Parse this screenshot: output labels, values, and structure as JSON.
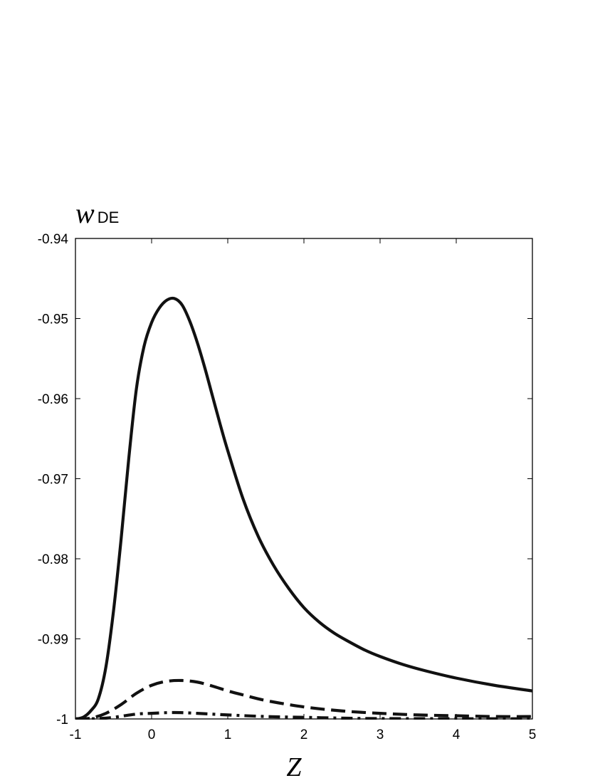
{
  "chart_data": {
    "type": "line",
    "xlabel": "Z",
    "ylabel_main": "w",
    "ylabel_sub": "DE",
    "xlim": [
      -1,
      5
    ],
    "ylim": [
      -1,
      -0.94
    ],
    "xticks": [
      -1,
      0,
      1,
      2,
      3,
      4,
      5
    ],
    "yticks": [
      -0.94,
      -0.95,
      -0.96,
      -0.97,
      -0.98,
      -0.99,
      -1
    ],
    "xtick_labels": [
      "-1",
      "0",
      "1",
      "2",
      "3",
      "4",
      "5"
    ],
    "ytick_labels": [
      "-0.94",
      "-0.95",
      "-0.96",
      "-0.97",
      "-0.98",
      "-0.99",
      "-1"
    ],
    "grid": false,
    "series": [
      {
        "style": "solid",
        "x": [
          -1,
          -0.9,
          -0.8,
          -0.7,
          -0.6,
          -0.5,
          -0.4,
          -0.3,
          -0.2,
          -0.1,
          0,
          0.1,
          0.2,
          0.3,
          0.4,
          0.5,
          0.6,
          0.7,
          0.8,
          0.9,
          1,
          1.2,
          1.4,
          1.6,
          1.8,
          2,
          2.2,
          2.4,
          2.6,
          2.8,
          3,
          3.3,
          3.6,
          4,
          4.5,
          5
        ],
        "y": [
          -1,
          -0.9998,
          -0.999,
          -0.9975,
          -0.9935,
          -0.9865,
          -0.9775,
          -0.9675,
          -0.9588,
          -0.9535,
          -0.9505,
          -0.9487,
          -0.9477,
          -0.9475,
          -0.9483,
          -0.9503,
          -0.953,
          -0.9562,
          -0.9597,
          -0.9632,
          -0.9665,
          -0.9725,
          -0.9772,
          -0.9808,
          -0.9837,
          -0.9861,
          -0.9879,
          -0.9893,
          -0.9904,
          -0.9914,
          -0.9922,
          -0.9932,
          -0.994,
          -0.9949,
          -0.9958,
          -0.9965
        ]
      },
      {
        "style": "dashed",
        "x": [
          -1,
          -0.8,
          -0.6,
          -0.4,
          -0.2,
          0,
          0.2,
          0.4,
          0.6,
          0.8,
          1,
          1.2,
          1.5,
          2,
          2.5,
          3,
          3.5,
          4,
          4.5,
          5
        ],
        "y": [
          -1,
          -0.9999,
          -0.9993,
          -0.9982,
          -0.9968,
          -0.9958,
          -0.9953,
          -0.9952,
          -0.9954,
          -0.9959,
          -0.9965,
          -0.997,
          -0.9977,
          -0.9985,
          -0.999,
          -0.9993,
          -0.9995,
          -0.9996,
          -0.9997,
          -0.9997
        ]
      },
      {
        "style": "dashdot",
        "x": [
          -1,
          -0.6,
          -0.2,
          0,
          0.3,
          0.6,
          1,
          1.5,
          2,
          2.5,
          3,
          4,
          5
        ],
        "y": [
          -1,
          -0.9999,
          -0.9994,
          -0.9993,
          -0.9992,
          -0.9993,
          -0.9995,
          -0.9997,
          -0.9998,
          -0.9999,
          -0.99995,
          -0.99997,
          -0.99998
        ]
      }
    ]
  }
}
